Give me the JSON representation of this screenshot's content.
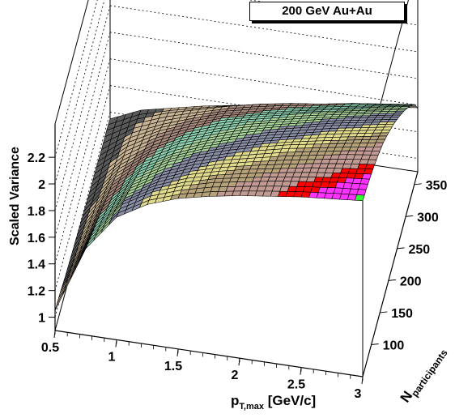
{
  "title": "200 GeV Au+Au",
  "chart_data": {
    "type": "surface3d",
    "title": "200 GeV Au+Au",
    "xlabel": "p",
    "xlabel_sub": "T,max",
    "xlabel_unit": " [GeV/c]",
    "ylabel": "N",
    "ylabel_sub": "participants",
    "zlabel": "Scaled Variance",
    "xlim": [
      0.5,
      3.0
    ],
    "ylim": [
      50,
      370
    ],
    "zlim": [
      0.9,
      2.45
    ],
    "x_ticks": [
      "0.5",
      "1",
      "1.5",
      "2",
      "2.5",
      "3"
    ],
    "y_ticks": [
      "100",
      "150",
      "200",
      "250",
      "300",
      "350"
    ],
    "z_ticks": [
      "1",
      "1.2",
      "1.4",
      "1.6",
      "1.8",
      "2",
      "2.2"
    ],
    "ncentrality": [
      50,
      80,
      110,
      140,
      170,
      200,
      230,
      260,
      290,
      320,
      350,
      370
    ],
    "pt_max": [
      0.5,
      0.75,
      1.0,
      1.25,
      1.5,
      1.75,
      2.0,
      2.25,
      2.5,
      2.75,
      3.0
    ],
    "z": [
      [
        1.05,
        1.55,
        1.82,
        1.95,
        2.03,
        2.08,
        2.12,
        2.15,
        2.18,
        2.2,
        2.22
      ],
      [
        1.04,
        1.5,
        1.77,
        1.9,
        1.98,
        2.04,
        2.08,
        2.12,
        2.15,
        2.18,
        2.2
      ],
      [
        1.02,
        1.45,
        1.7,
        1.83,
        1.92,
        1.98,
        2.03,
        2.07,
        2.11,
        2.14,
        2.17
      ],
      [
        1.01,
        1.4,
        1.63,
        1.76,
        1.85,
        1.92,
        1.97,
        2.02,
        2.06,
        2.1,
        2.13
      ],
      [
        1.0,
        1.35,
        1.56,
        1.69,
        1.78,
        1.85,
        1.91,
        1.96,
        2.0,
        2.04,
        2.08
      ],
      [
        0.99,
        1.3,
        1.49,
        1.61,
        1.7,
        1.77,
        1.83,
        1.88,
        1.93,
        1.97,
        2.01
      ],
      [
        0.98,
        1.25,
        1.42,
        1.54,
        1.62,
        1.69,
        1.75,
        1.8,
        1.85,
        1.89,
        1.93
      ],
      [
        0.97,
        1.2,
        1.35,
        1.46,
        1.54,
        1.61,
        1.66,
        1.71,
        1.76,
        1.8,
        1.84
      ],
      [
        0.97,
        1.16,
        1.29,
        1.38,
        1.46,
        1.52,
        1.57,
        1.62,
        1.66,
        1.7,
        1.74
      ],
      [
        0.96,
        1.12,
        1.22,
        1.3,
        1.37,
        1.42,
        1.47,
        1.51,
        1.55,
        1.59,
        1.63
      ],
      [
        0.96,
        1.08,
        1.16,
        1.22,
        1.28,
        1.33,
        1.37,
        1.4,
        1.44,
        1.47,
        1.5
      ],
      [
        0.95,
        1.05,
        1.1,
        1.15,
        1.19,
        1.23,
        1.26,
        1.29,
        1.32,
        1.35,
        1.38
      ]
    ],
    "color_bands": [
      {
        "min": 0.9,
        "color": "#5a5a5a"
      },
      {
        "min": 1.1,
        "color": "#c9b595"
      },
      {
        "min": 1.3,
        "color": "#a88b7e"
      },
      {
        "min": 1.45,
        "color": "#8fd3b3"
      },
      {
        "min": 1.6,
        "color": "#a9d49c"
      },
      {
        "min": 1.75,
        "color": "#8a8fa6"
      },
      {
        "min": 1.9,
        "color": "#e1db8e"
      },
      {
        "min": 2.0,
        "color": "#b5a27a"
      },
      {
        "min": 2.08,
        "color": "#c09a93"
      },
      {
        "min": 2.15,
        "color": "#ff0000"
      },
      {
        "min": 2.18,
        "color": "#ff33ff"
      },
      {
        "min": 2.21,
        "color": "#33ff33"
      },
      {
        "min": 2.235,
        "color": "#000000"
      }
    ],
    "grid": true
  }
}
